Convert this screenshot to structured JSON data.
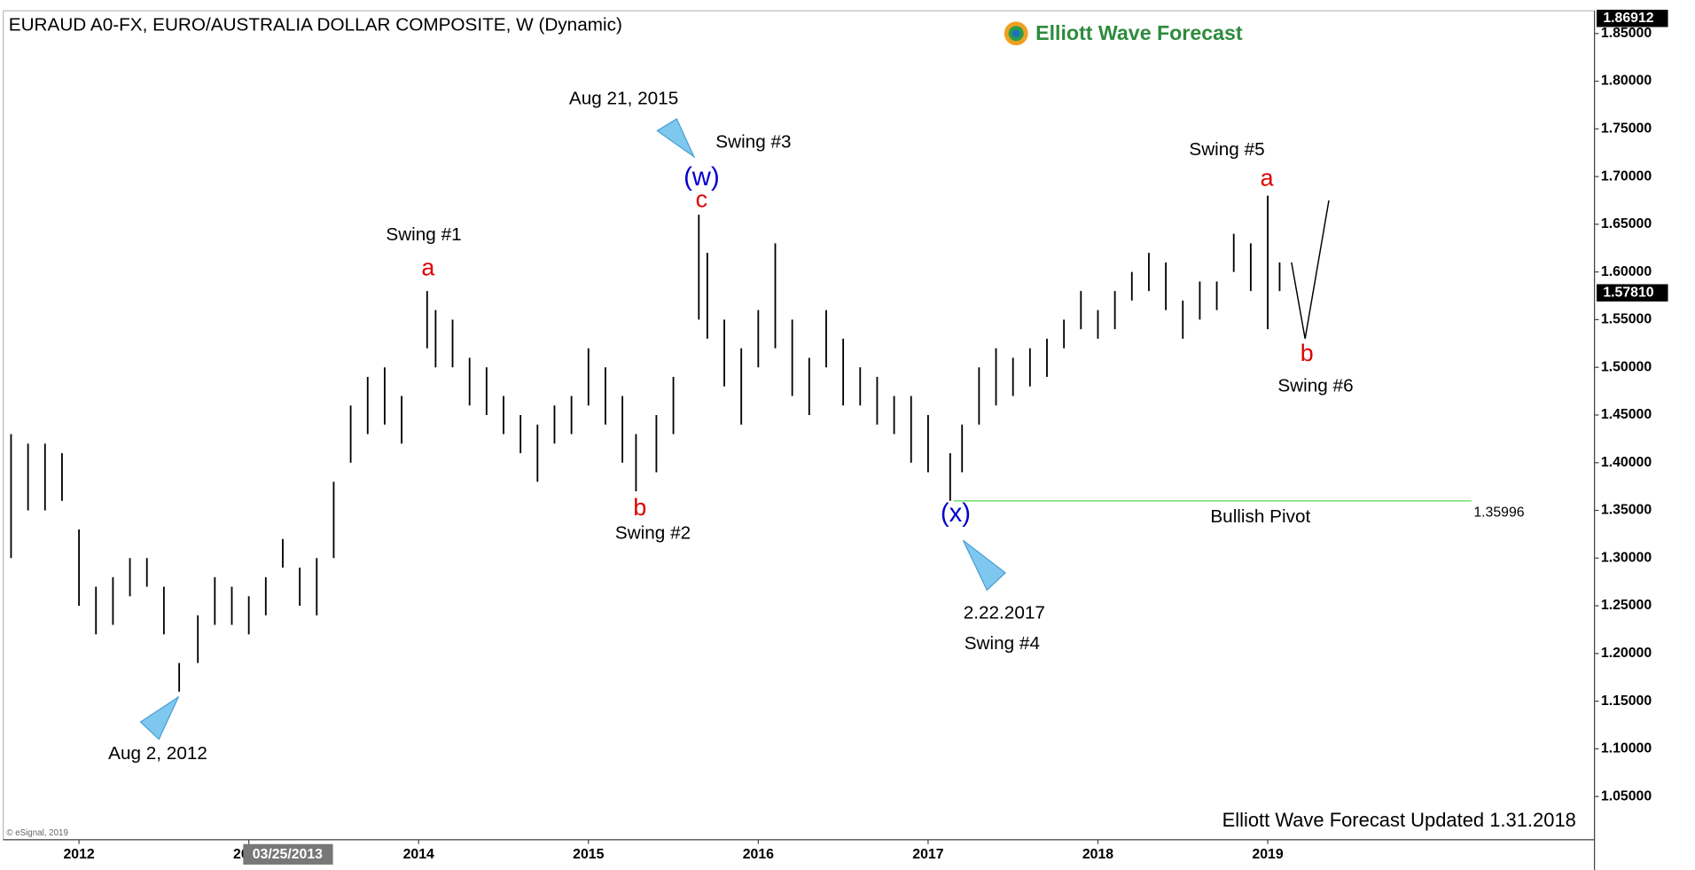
{
  "chart_data": {
    "type": "ohlc",
    "title": "EURAUD A0-FX, EURO/AUSTRALIA DOLLAR COMPOSITE, W (Dynamic)",
    "brand": "Elliott Wave Forecast",
    "footer": "Elliott Wave Forecast Updated 1.31.2018",
    "copyright": "© eSignal, 2019",
    "cursor_label": "03/25/2013",
    "color": "#000000",
    "x": [
      2011.6,
      2011.7,
      2011.8,
      2011.9,
      2012.0,
      2012.1,
      2012.2,
      2012.3,
      2012.4,
      2012.5,
      2012.59,
      2012.7,
      2012.8,
      2012.9,
      2013.0,
      2013.1,
      2013.2,
      2013.3,
      2013.4,
      2013.5,
      2013.6,
      2013.7,
      2013.8,
      2013.9,
      2014.05,
      2014.1,
      2014.2,
      2014.3,
      2014.4,
      2014.5,
      2014.6,
      2014.7,
      2014.8,
      2014.9,
      2015.0,
      2015.1,
      2015.2,
      2015.28,
      2015.4,
      2015.5,
      2015.65,
      2015.7,
      2015.8,
      2015.9,
      2016.0,
      2016.1,
      2016.2,
      2016.3,
      2016.4,
      2016.5,
      2016.6,
      2016.7,
      2016.8,
      2016.9,
      2017.0,
      2017.13,
      2017.2,
      2017.3,
      2017.4,
      2017.5,
      2017.6,
      2017.7,
      2017.8,
      2017.9,
      2018.0,
      2018.1,
      2018.2,
      2018.3,
      2018.4,
      2018.5,
      2018.6,
      2018.7,
      2018.8,
      2018.9,
      2019.0,
      2019.07
    ],
    "high": [
      1.43,
      1.42,
      1.42,
      1.41,
      1.33,
      1.27,
      1.28,
      1.3,
      1.3,
      1.27,
      1.19,
      1.24,
      1.28,
      1.27,
      1.26,
      1.28,
      1.32,
      1.29,
      1.3,
      1.38,
      1.46,
      1.49,
      1.5,
      1.47,
      1.58,
      1.56,
      1.55,
      1.51,
      1.5,
      1.47,
      1.45,
      1.44,
      1.46,
      1.47,
      1.52,
      1.5,
      1.47,
      1.43,
      1.45,
      1.49,
      1.66,
      1.62,
      1.55,
      1.52,
      1.56,
      1.63,
      1.55,
      1.51,
      1.56,
      1.53,
      1.5,
      1.49,
      1.47,
      1.47,
      1.45,
      1.41,
      1.44,
      1.5,
      1.52,
      1.51,
      1.52,
      1.53,
      1.55,
      1.58,
      1.56,
      1.58,
      1.6,
      1.62,
      1.61,
      1.57,
      1.59,
      1.59,
      1.64,
      1.63,
      1.68,
      1.61
    ],
    "low": [
      1.3,
      1.35,
      1.35,
      1.36,
      1.25,
      1.22,
      1.23,
      1.26,
      1.27,
      1.22,
      1.16,
      1.19,
      1.23,
      1.23,
      1.22,
      1.24,
      1.29,
      1.25,
      1.24,
      1.3,
      1.4,
      1.43,
      1.44,
      1.42,
      1.52,
      1.5,
      1.5,
      1.46,
      1.45,
      1.43,
      1.41,
      1.38,
      1.42,
      1.43,
      1.46,
      1.44,
      1.4,
      1.37,
      1.39,
      1.43,
      1.55,
      1.53,
      1.48,
      1.44,
      1.5,
      1.52,
      1.47,
      1.45,
      1.5,
      1.46,
      1.46,
      1.44,
      1.43,
      1.4,
      1.39,
      1.36,
      1.39,
      1.44,
      1.46,
      1.47,
      1.48,
      1.49,
      1.52,
      1.54,
      1.53,
      1.54,
      1.57,
      1.58,
      1.56,
      1.53,
      1.55,
      1.56,
      1.6,
      1.58,
      1.54,
      1.58
    ],
    "xlim": [
      2011.554,
      2020.924
    ],
    "ylim": [
      1.0047,
      1.8738
    ],
    "xticks": [
      2012,
      2013,
      2014,
      2015,
      2016,
      2017,
      2018,
      2019
    ],
    "yticks": [
      {
        "value": 1.05,
        "label": "1.05000"
      },
      {
        "value": 1.1,
        "label": "1.10000"
      },
      {
        "value": 1.15,
        "label": "1.15000"
      },
      {
        "value": 1.2,
        "label": "1.20000"
      },
      {
        "value": 1.25,
        "label": "1.25000"
      },
      {
        "value": 1.3,
        "label": "1.30000"
      },
      {
        "value": 1.35,
        "label": "1.35000"
      },
      {
        "value": 1.4,
        "label": "1.40000"
      },
      {
        "value": 1.45,
        "label": "1.45000"
      },
      {
        "value": 1.5,
        "label": "1.50000"
      },
      {
        "value": 1.55,
        "label": "1.55000"
      },
      {
        "value": 1.6,
        "label": "1.60000"
      },
      {
        "value": 1.65,
        "label": "1.65000"
      },
      {
        "value": 1.7,
        "label": "1.70000"
      },
      {
        "value": 1.75,
        "label": "1.75000"
      },
      {
        "value": 1.8,
        "label": "1.80000"
      },
      {
        "value": 1.85,
        "label": "1.85000"
      }
    ],
    "high_marker": {
      "value": 1.86912,
      "label": "1.86912"
    },
    "last_price": {
      "value": 1.5781,
      "label": "1.57810"
    },
    "pivot": {
      "value": 1.35996,
      "x": [
        2017.15,
        2020.2
      ],
      "color": "#66dd66"
    },
    "projection": {
      "x": [
        2019.14,
        2019.22,
        2019.36
      ],
      "y": [
        1.61,
        1.53,
        1.675
      ]
    },
    "annotations": [
      {
        "text": "Aug 21, 2015",
        "color": "#000000"
      },
      {
        "text": "Swing #3",
        "color": "#000000"
      },
      {
        "text": "(w)",
        "color": "#0000cc"
      },
      {
        "text": "c",
        "color": "#dd0000"
      },
      {
        "text": "Swing #1",
        "color": "#000000"
      },
      {
        "text": "a",
        "color": "#dd0000"
      },
      {
        "text": "b",
        "color": "#dd0000"
      },
      {
        "text": "Swing #2",
        "color": "#000000"
      },
      {
        "text": "(x)",
        "color": "#0000cc"
      },
      {
        "text": "2.22.2017",
        "color": "#000000"
      },
      {
        "text": "Swing #4",
        "color": "#000000"
      },
      {
        "text": "Bullish Pivot",
        "color": "#000000"
      },
      {
        "text": "Swing #5",
        "color": "#000000"
      },
      {
        "text": "a",
        "color": "#dd0000"
      },
      {
        "text": "b",
        "color": "#dd0000"
      },
      {
        "text": "Swing #6",
        "color": "#000000"
      },
      {
        "text": "Aug 2, 2012",
        "color": "#000000"
      }
    ]
  }
}
